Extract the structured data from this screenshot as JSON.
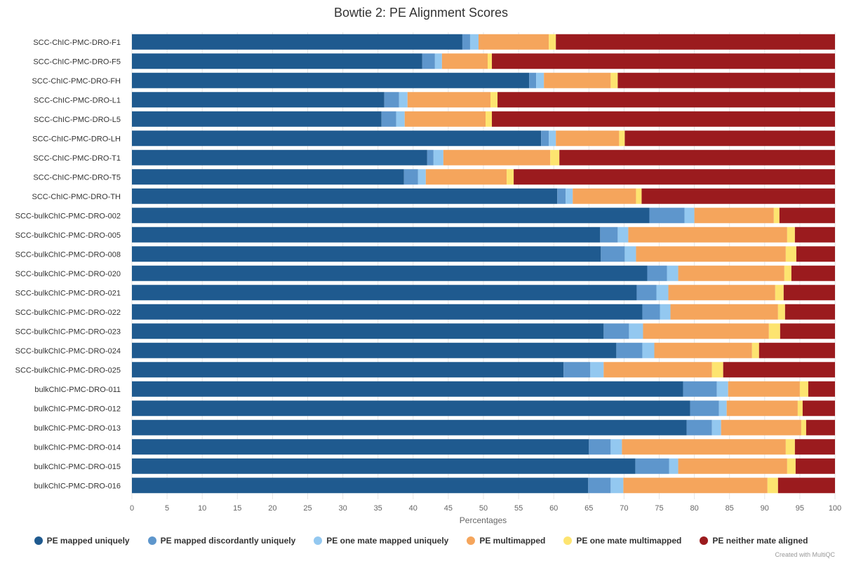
{
  "chart_data": {
    "type": "bar",
    "orientation": "horizontal",
    "stacked": true,
    "title": "Bowtie 2: PE Alignment Scores",
    "xlabel": "Percentages",
    "xlim": [
      0,
      100
    ],
    "xticks": [
      0,
      5,
      10,
      15,
      20,
      25,
      30,
      35,
      40,
      45,
      50,
      55,
      60,
      65,
      70,
      75,
      80,
      85,
      90,
      95,
      100
    ],
    "legend_position": "bottom",
    "categories": [
      "SCC-ChIC-PMC-DRO-F1",
      "SCC-ChIC-PMC-DRO-F5",
      "SCC-ChIC-PMC-DRO-FH",
      "SCC-ChIC-PMC-DRO-L1",
      "SCC-ChIC-PMC-DRO-L5",
      "SCC-ChIC-PMC-DRO-LH",
      "SCC-ChIC-PMC-DRO-T1",
      "SCC-ChIC-PMC-DRO-T5",
      "SCC-ChIC-PMC-DRO-TH",
      "SCC-bulkChIC-PMC-DRO-002",
      "SCC-bulkChIC-PMC-DRO-005",
      "SCC-bulkChIC-PMC-DRO-008",
      "SCC-bulkChIC-PMC-DRO-020",
      "SCC-bulkChIC-PMC-DRO-021",
      "SCC-bulkChIC-PMC-DRO-022",
      "SCC-bulkChIC-PMC-DRO-023",
      "SCC-bulkChIC-PMC-DRO-024",
      "SCC-bulkChIC-PMC-DRO-025",
      "bulkChIC-PMC-DRO-011",
      "bulkChIC-PMC-DRO-012",
      "bulkChIC-PMC-DRO-013",
      "bulkChIC-PMC-DRO-014",
      "bulkChIC-PMC-DRO-015",
      "bulkChIC-PMC-DRO-016"
    ],
    "series": [
      {
        "name": "PE mapped uniquely",
        "color": "#1f5a8f",
        "values": [
          47.0,
          41.3,
          56.5,
          35.9,
          35.5,
          58.2,
          42.0,
          38.7,
          60.5,
          73.6,
          66.6,
          66.7,
          73.3,
          71.8,
          72.6,
          67.1,
          68.9,
          61.4,
          78.4,
          79.4,
          78.9,
          65.0,
          71.6,
          64.9
        ]
      },
      {
        "name": "PE mapped discordantly uniquely",
        "color": "#5e96cc",
        "values": [
          1.1,
          1.8,
          1.0,
          2.1,
          2.1,
          1.1,
          0.9,
          2.0,
          1.2,
          5.0,
          2.5,
          3.4,
          2.8,
          2.8,
          2.5,
          3.6,
          3.7,
          3.8,
          4.8,
          4.1,
          3.6,
          3.1,
          4.8,
          3.2
        ]
      },
      {
        "name": "PE one mate mapped uniquely",
        "color": "#93c8f0",
        "values": [
          1.2,
          1.0,
          1.1,
          1.2,
          1.2,
          1.0,
          1.4,
          1.1,
          1.0,
          1.4,
          1.5,
          1.6,
          1.6,
          1.7,
          1.5,
          2.0,
          1.7,
          1.9,
          1.6,
          1.1,
          1.3,
          1.6,
          1.3,
          1.8
        ]
      },
      {
        "name": "PE multimapped",
        "color": "#f5a55c",
        "values": [
          10.0,
          6.5,
          9.5,
          11.8,
          11.5,
          9.0,
          15.2,
          11.5,
          9.0,
          11.3,
          22.6,
          21.3,
          15.1,
          15.2,
          15.3,
          17.9,
          13.9,
          15.4,
          10.2,
          10.1,
          11.4,
          23.3,
          15.5,
          20.5
        ]
      },
      {
        "name": "PE one mate multimapped",
        "color": "#fde470",
        "values": [
          1.0,
          0.6,
          1.0,
          1.0,
          0.9,
          0.8,
          1.3,
          1.0,
          0.8,
          0.8,
          1.1,
          1.5,
          1.0,
          1.2,
          1.0,
          1.6,
          1.0,
          1.6,
          1.2,
          0.7,
          0.7,
          1.3,
          1.2,
          1.5
        ]
      },
      {
        "name": "PE neither mate aligned",
        "color": "#9b1b1e",
        "values": [
          39.7,
          48.8,
          30.9,
          48.0,
          48.8,
          29.9,
          39.2,
          45.7,
          27.5,
          7.9,
          5.7,
          5.5,
          6.2,
          7.3,
          7.1,
          7.8,
          10.8,
          15.9,
          3.8,
          4.6,
          4.1,
          5.7,
          5.6,
          8.1
        ]
      }
    ]
  },
  "credit": "Created with MultiQC"
}
